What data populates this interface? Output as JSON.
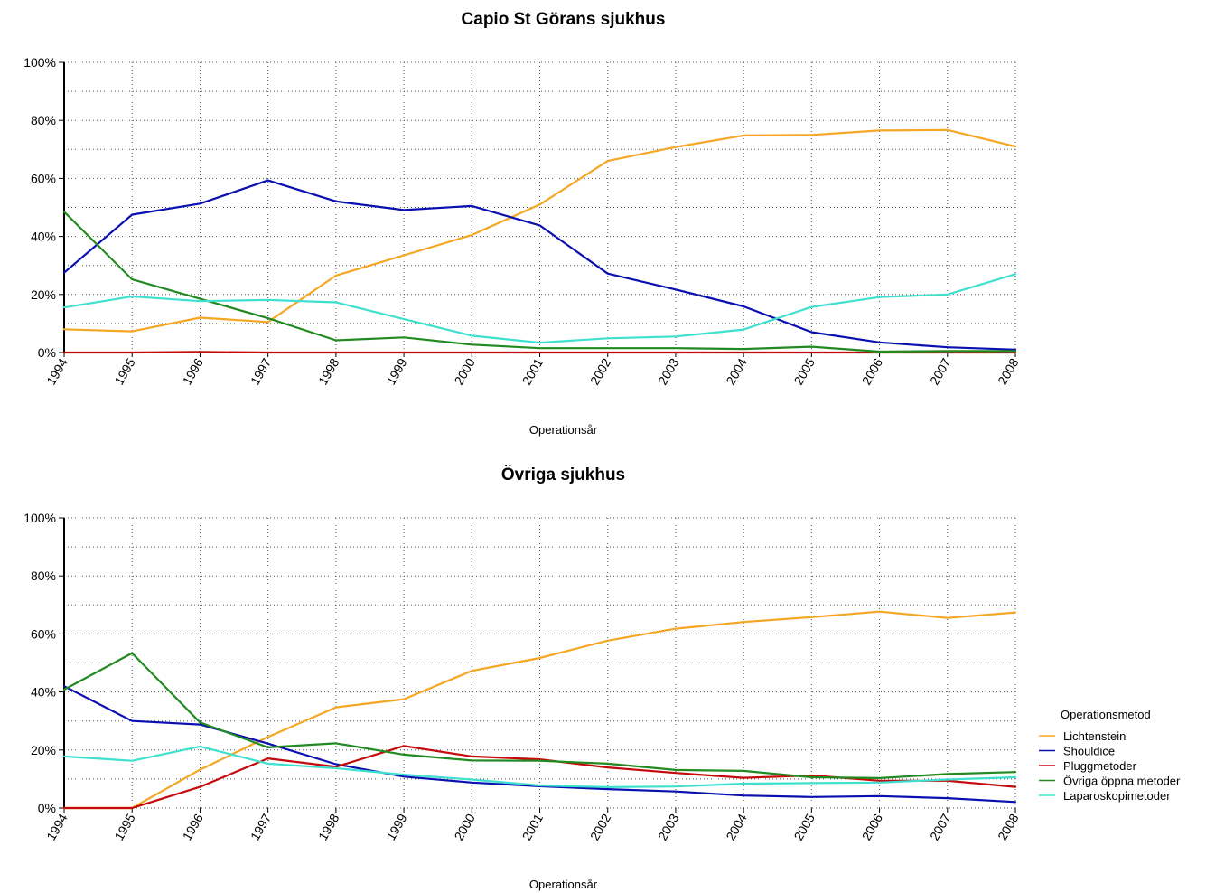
{
  "colors": {
    "Lichtenstein": "#f5a623",
    "Shouldice": "#0a10b0",
    "Pluggmetoder": "#c40a0a",
    "Övriga öppna metoder": "#218a21",
    "Laparoskopimetoder": "#40e0d0"
  },
  "legend": {
    "title": "Operationsmetod",
    "items": [
      "Lichtenstein",
      "Shouldice",
      "Pluggmetoder",
      "Övriga öppna metoder",
      "Laparoskopimetoder"
    ]
  },
  "chart_data": [
    {
      "type": "line",
      "title": "Capio St Görans sjukhus",
      "xlabel": "Operationsår",
      "ylabel": "",
      "ylim": [
        0,
        100
      ],
      "yticks": [
        "0%",
        "20%",
        "40%",
        "60%",
        "80%",
        "100%"
      ],
      "x": [
        "1994",
        "1995",
        "1996",
        "1997",
        "1998",
        "1999",
        "2000",
        "2001",
        "2002",
        "2003",
        "2004",
        "2005",
        "2006",
        "2007",
        "2008"
      ],
      "series": [
        {
          "name": "Lichtenstein",
          "values": [
            8,
            7.3,
            12,
            10.5,
            26.5,
            33.5,
            40.5,
            51,
            66,
            70.8,
            74.8,
            75,
            76.5,
            76.7,
            71
          ]
        },
        {
          "name": "Shouldice",
          "values": [
            27.5,
            47.5,
            51.3,
            59.3,
            52.1,
            49.1,
            50.5,
            43.8,
            27.2,
            21.7,
            15.9,
            7,
            3.5,
            1.8,
            1
          ]
        },
        {
          "name": "Pluggmetoder",
          "values": [
            0,
            0,
            0.2,
            0,
            0,
            0,
            0,
            0,
            0,
            0,
            0,
            0,
            0,
            0,
            0
          ]
        },
        {
          "name": "Övriga öppna metoder",
          "values": [
            48.5,
            25.2,
            18.5,
            11.8,
            4.2,
            5.2,
            2.7,
            1.5,
            1.5,
            1.5,
            1.2,
            2,
            0.3,
            0.5,
            0.5
          ]
        },
        {
          "name": "Laparoskopimetoder",
          "values": [
            15.5,
            19.3,
            17.7,
            18.1,
            17.3,
            11.5,
            5.8,
            3.4,
            4.9,
            5.5,
            7.9,
            15.7,
            19.1,
            20,
            27
          ]
        }
      ]
    },
    {
      "type": "line",
      "title": "Övriga sjukhus",
      "xlabel": "Operationsår",
      "ylabel": "",
      "ylim": [
        0,
        100
      ],
      "yticks": [
        "0%",
        "20%",
        "40%",
        "60%",
        "80%",
        "100%"
      ],
      "x": [
        "1994",
        "1995",
        "1996",
        "1997",
        "1998",
        "1999",
        "2000",
        "2001",
        "2002",
        "2003",
        "2004",
        "2005",
        "2006",
        "2007",
        "2008"
      ],
      "series": [
        {
          "name": "Lichtenstein",
          "values": [
            0,
            0,
            13.2,
            24.5,
            34.7,
            37.5,
            47.3,
            51.7,
            57.7,
            61.8,
            64.1,
            65.8,
            67.7,
            65.5,
            67.4
          ]
        },
        {
          "name": "Shouldice",
          "values": [
            42,
            30,
            28.8,
            22.2,
            15.1,
            10.8,
            8.8,
            7.5,
            6.5,
            5.7,
            4.3,
            3.8,
            4.1,
            3.4,
            2.1
          ]
        },
        {
          "name": "Pluggmetoder",
          "values": [
            0,
            0,
            7.3,
            17.1,
            14.2,
            21.4,
            17.8,
            16.8,
            14,
            12.1,
            10.4,
            11.2,
            9.4,
            9.4,
            7.3
          ]
        },
        {
          "name": "Övriga öppna metoder",
          "values": [
            40.8,
            53.4,
            29.5,
            20.9,
            22.3,
            18.4,
            16.4,
            16.3,
            15.3,
            13.1,
            12.8,
            10.6,
            10.3,
            11.7,
            12.4
          ]
        },
        {
          "name": "Laparoskopimetoder",
          "values": [
            17.8,
            16.3,
            21.2,
            15.3,
            13.7,
            11.5,
            9.8,
            7.8,
            7.2,
            7.4,
            8.4,
            8.6,
            8.8,
            9.8,
            10.6
          ]
        }
      ]
    }
  ]
}
